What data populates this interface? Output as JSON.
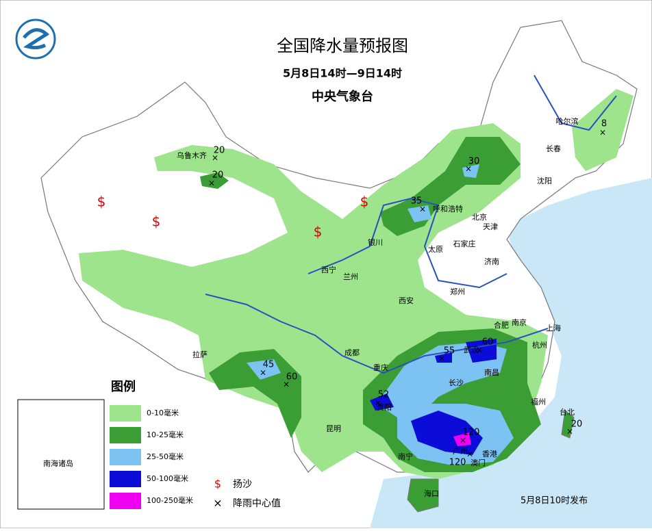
{
  "header": {
    "title": "全国降水量预报图",
    "period": "5月8日14时—9日14时",
    "issuer": "中央气象台"
  },
  "legend": {
    "title": "图例",
    "items": [
      {
        "label": "0-10毫米",
        "color": "#9de48c"
      },
      {
        "label": "10-25毫米",
        "color": "#3a9e35"
      },
      {
        "label": "25-50毫米",
        "color": "#7cc3f4"
      },
      {
        "label": "50-100毫米",
        "color": "#0c0cd8"
      },
      {
        "label": "100-250毫米",
        "color": "#f000f0"
      }
    ],
    "symbols": [
      {
        "symbol": "$",
        "label": "扬沙"
      },
      {
        "symbol": "×",
        "label": "降雨中心值"
      }
    ]
  },
  "inset": "南海诸岛",
  "cities": [
    "乌鲁木齐",
    "哈尔滨",
    "长春",
    "沈阳",
    "呼和浩特",
    "北京",
    "天津",
    "银川",
    "石家庄",
    "太原",
    "济南",
    "西宁",
    "兰州",
    "郑州",
    "西安",
    "合肥",
    "南京",
    "上海",
    "杭州",
    "拉萨",
    "成都",
    "武汉",
    "重庆",
    "南昌",
    "长沙",
    "贵阳",
    "福州",
    "台北",
    "昆明",
    "南宁",
    "广州",
    "香港",
    "澳门",
    "海口"
  ],
  "rain_centers": [
    20,
    20,
    30,
    35,
    8,
    45,
    60,
    55,
    60,
    52,
    120,
    120,
    20
  ],
  "issued": "5月8日10时发布"
}
